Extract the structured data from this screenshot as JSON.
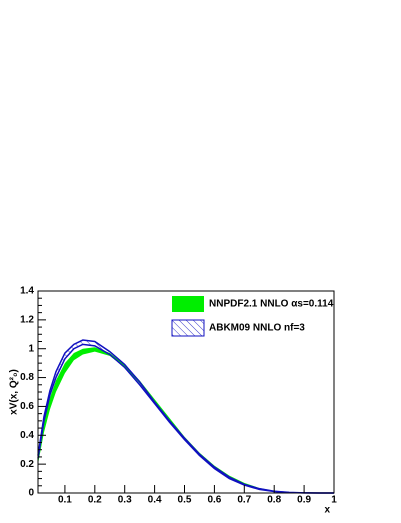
{
  "chart_data": {
    "type": "band",
    "x_label": "x",
    "y_label": "xV(x, Q²₀)",
    "x": [
      0.01,
      0.03,
      0.05,
      0.07,
      0.1,
      0.13,
      0.16,
      0.2,
      0.25,
      0.3,
      0.35,
      0.4,
      0.45,
      0.5,
      0.55,
      0.6,
      0.65,
      0.7,
      0.75,
      0.8,
      0.85,
      0.9,
      0.95,
      1
    ],
    "series": [
      {
        "name": "NNPDF2.1 NNLO αs=0.114",
        "color": "#00ee00",
        "fill_style": "solid",
        "lower": [
          0.2,
          0.42,
          0.58,
          0.7,
          0.83,
          0.92,
          0.96,
          0.98,
          0.95,
          0.87,
          0.76,
          0.63,
          0.5,
          0.38,
          0.27,
          0.18,
          0.11,
          0.06,
          0.03,
          0.012,
          0.004,
          0.001,
          0,
          0
        ],
        "upper": [
          0.27,
          0.5,
          0.66,
          0.78,
          0.9,
          0.97,
          1.0,
          1.01,
          0.97,
          0.89,
          0.78,
          0.65,
          0.52,
          0.39,
          0.28,
          0.19,
          0.12,
          0.07,
          0.035,
          0.015,
          0.005,
          0.001,
          0,
          0
        ]
      },
      {
        "name": "ABKM09 NNLO nf=3",
        "color": "#1010c0",
        "fill_style": "hatched",
        "lower": [
          0.24,
          0.5,
          0.68,
          0.8,
          0.93,
          1.0,
          1.03,
          1.02,
          0.96,
          0.87,
          0.75,
          0.62,
          0.49,
          0.37,
          0.26,
          0.17,
          0.1,
          0.055,
          0.025,
          0.01,
          0.003,
          0.001,
          0,
          0
        ],
        "upper": [
          0.26,
          0.53,
          0.71,
          0.84,
          0.97,
          1.03,
          1.06,
          1.05,
          0.98,
          0.89,
          0.77,
          0.63,
          0.5,
          0.38,
          0.27,
          0.18,
          0.11,
          0.06,
          0.03,
          0.012,
          0.004,
          0.001,
          0,
          0
        ]
      }
    ],
    "xlim": [
      0.01,
      1
    ],
    "ylim": [
      0,
      1.4
    ],
    "xticks": [
      0.1,
      0.2,
      0.3,
      0.4,
      0.5,
      0.6,
      0.7,
      0.8,
      0.9,
      1
    ],
    "yticks": [
      0,
      0.2,
      0.4,
      0.6,
      0.8,
      1,
      1.2,
      1.4
    ],
    "legend": "top-right"
  }
}
